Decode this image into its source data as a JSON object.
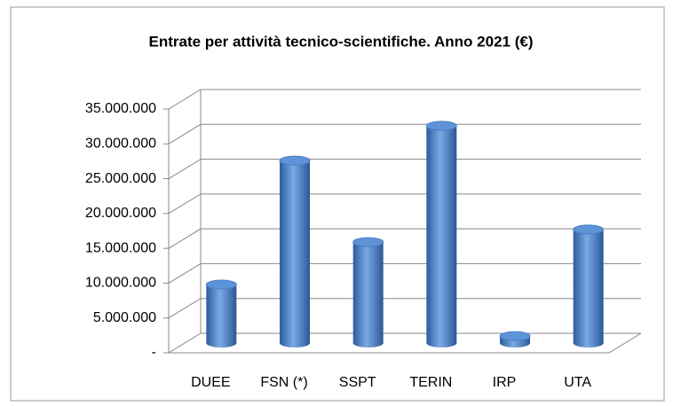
{
  "chart_data": {
    "type": "bar3d",
    "title": "Entrate per attività tecnico-scientifiche. Anno 2021 (€)",
    "categories": [
      "DUEE",
      "FSN (*)",
      "SSPT",
      "TERIN",
      "IRP",
      "UTA"
    ],
    "values": [
      8400000,
      26200000,
      14500000,
      31200000,
      1000000,
      16300000
    ],
    "color": "#4a7fc8",
    "ylim": [
      0,
      35000000
    ],
    "yticks": [
      {
        "value": 0,
        "label": "-"
      },
      {
        "value": 5000000,
        "label": "5.000.000"
      },
      {
        "value": 10000000,
        "label": "10.000.000"
      },
      {
        "value": 15000000,
        "label": "15.000.000"
      },
      {
        "value": 20000000,
        "label": "20.000.000"
      },
      {
        "value": 25000000,
        "label": "25.000.000"
      },
      {
        "value": 30000000,
        "label": "30.000.000"
      },
      {
        "value": 35000000,
        "label": "35.000.000"
      }
    ],
    "grid": true
  }
}
